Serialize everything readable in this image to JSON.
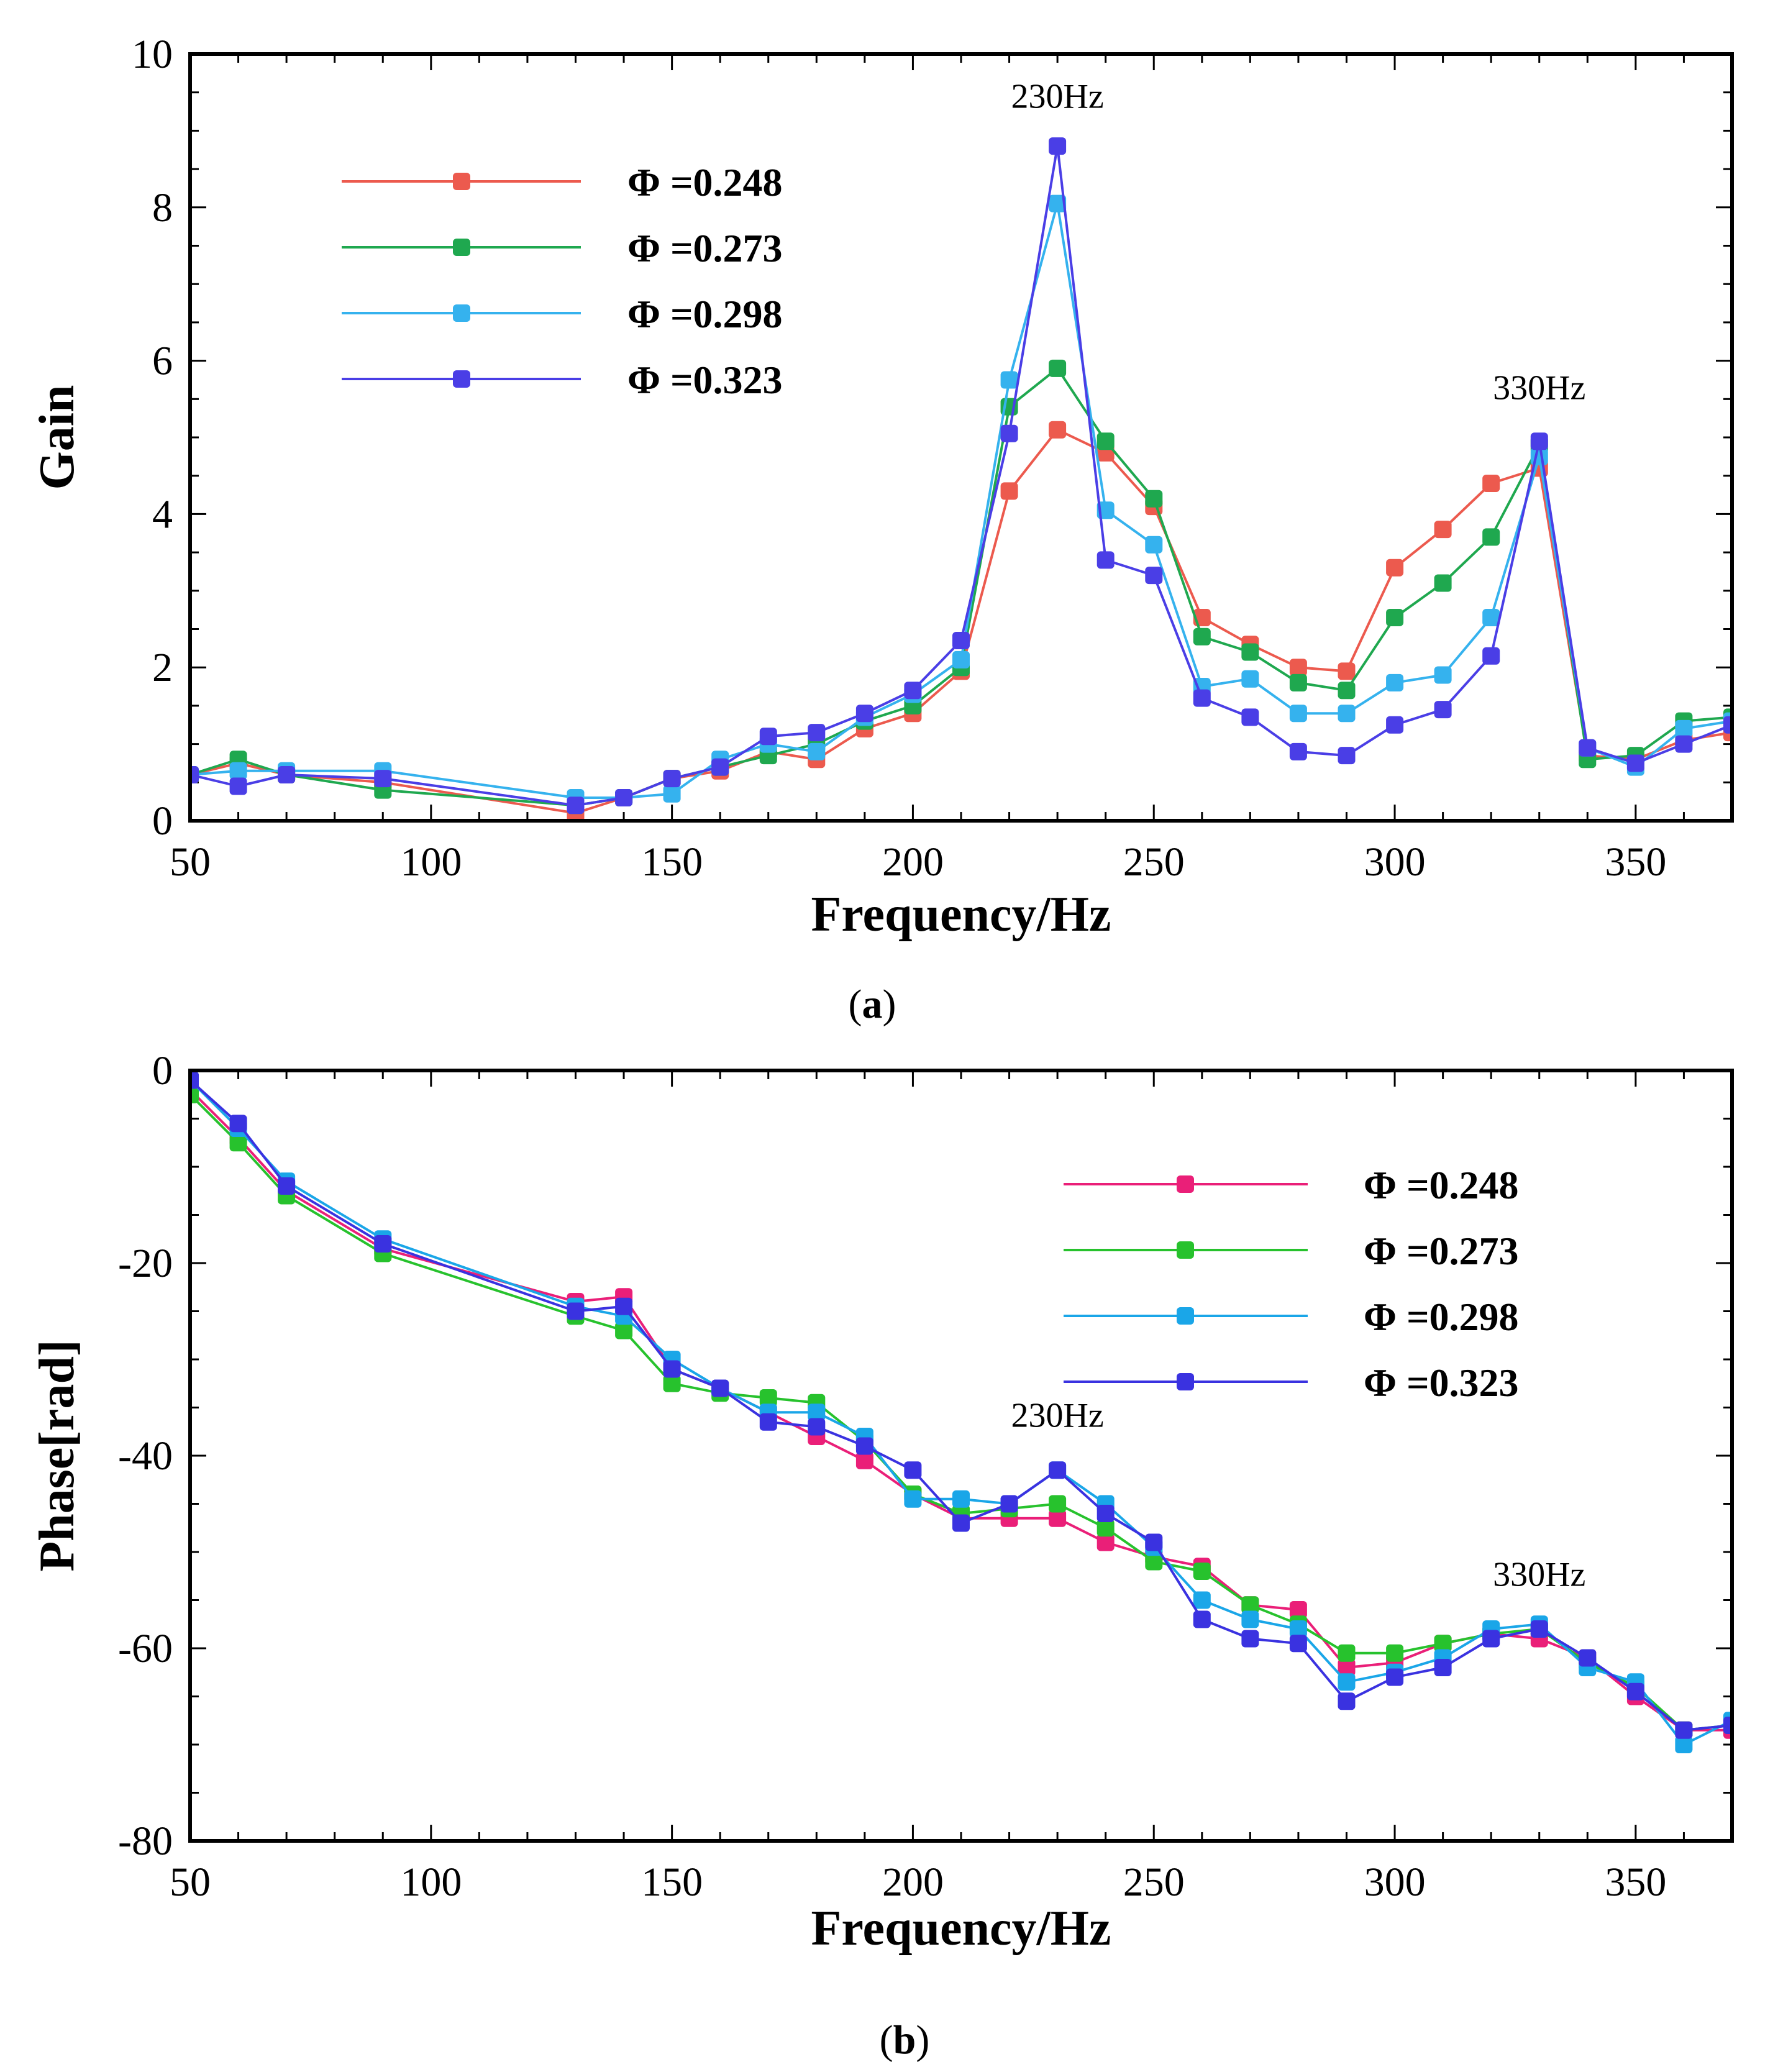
{
  "colors": {
    "a": [
      "#ec5a4e",
      "#1fa84f",
      "#35b2ee",
      "#4a3ee6"
    ],
    "b": [
      "#ea1f78",
      "#27c22d",
      "#1aa6e8",
      "#3a32e0"
    ]
  },
  "chart_data": [
    {
      "type": "line",
      "panel_label": "a",
      "xlabel": "Frequency/Hz",
      "ylabel": "Gain",
      "xlim": [
        50,
        370
      ],
      "ylim": [
        0,
        10
      ],
      "xticks": [
        "50",
        "100",
        "150",
        "200",
        "250",
        "300",
        "350"
      ],
      "yticks": [
        "0",
        "2",
        "4",
        "6",
        "8",
        "10"
      ],
      "legend_position": "top-left",
      "annotations": [
        {
          "text": "230Hz",
          "x": 230,
          "y": 9.3
        },
        {
          "text": "330Hz",
          "x": 330,
          "y": 5.5
        }
      ],
      "x": [
        50,
        60,
        70,
        90,
        130,
        140,
        150,
        160,
        170,
        180,
        190,
        200,
        210,
        220,
        230,
        240,
        250,
        260,
        270,
        280,
        290,
        300,
        310,
        320,
        330,
        340,
        350,
        360,
        370
      ],
      "series": [
        {
          "name": "Φ =0.248",
          "values": [
            0.6,
            0.75,
            0.6,
            0.5,
            0.1,
            0.3,
            0.55,
            0.65,
            0.9,
            0.8,
            1.2,
            1.4,
            1.95,
            4.3,
            5.1,
            4.8,
            4.1,
            2.65,
            2.3,
            2.0,
            1.95,
            3.3,
            3.8,
            4.4,
            4.6,
            0.85,
            0.8,
            1.05,
            1.15
          ]
        },
        {
          "name": "Φ =0.273",
          "values": [
            0.6,
            0.8,
            0.6,
            0.4,
            0.2,
            0.3,
            0.55,
            0.7,
            0.85,
            1.0,
            1.3,
            1.5,
            2.0,
            5.4,
            5.9,
            4.95,
            4.2,
            2.4,
            2.2,
            1.8,
            1.7,
            2.65,
            3.1,
            3.7,
            4.9,
            0.8,
            0.85,
            1.3,
            1.35
          ]
        },
        {
          "name": "Φ =0.298",
          "values": [
            0.6,
            0.65,
            0.65,
            0.65,
            0.3,
            0.3,
            0.35,
            0.8,
            1.0,
            0.9,
            1.35,
            1.65,
            2.1,
            5.75,
            8.05,
            4.05,
            3.6,
            1.75,
            1.85,
            1.4,
            1.4,
            1.8,
            1.9,
            2.65,
            4.75,
            0.95,
            0.7,
            1.2,
            1.3
          ]
        },
        {
          "name": "Φ =0.323",
          "values": [
            0.6,
            0.45,
            0.6,
            0.55,
            0.2,
            0.3,
            0.55,
            0.7,
            1.1,
            1.15,
            1.4,
            1.7,
            2.35,
            5.05,
            8.8,
            3.4,
            3.2,
            1.6,
            1.35,
            0.9,
            0.85,
            1.25,
            1.45,
            2.15,
            4.95,
            0.95,
            0.75,
            1.0,
            1.25
          ]
        }
      ]
    },
    {
      "type": "line",
      "panel_label": "b",
      "xlabel": "Frequency/Hz",
      "ylabel": "Phase[rad]",
      "xlim": [
        50,
        370
      ],
      "ylim": [
        -80,
        0
      ],
      "xticks": [
        "50",
        "100",
        "150",
        "200",
        "250",
        "300",
        "350"
      ],
      "yticks": [
        "0",
        "-20",
        "-40",
        "-60",
        "-80"
      ],
      "legend_position": "top-right",
      "annotations": [
        {
          "text": "230Hz",
          "x": 230,
          "y": -37
        },
        {
          "text": "330Hz",
          "x": 330,
          "y": -53.5
        }
      ],
      "x": [
        50,
        60,
        70,
        90,
        130,
        140,
        150,
        160,
        170,
        180,
        190,
        200,
        210,
        220,
        230,
        240,
        250,
        260,
        270,
        280,
        290,
        300,
        310,
        320,
        330,
        340,
        350,
        360,
        370
      ],
      "series": [
        {
          "name": "Φ =0.248",
          "values": [
            -2,
            -7,
            -12.5,
            -18.5,
            -24,
            -23.5,
            -31,
            -33,
            -35.5,
            -38,
            -40.5,
            -44,
            -46.5,
            -46.5,
            -46.5,
            -49,
            -50.5,
            -51.5,
            -55.5,
            -56,
            -62,
            -61.5,
            -59.5,
            -58.5,
            -59,
            -61,
            -65,
            -68.5,
            -68.5
          ]
        },
        {
          "name": "Φ =0.273",
          "values": [
            -2.5,
            -7.5,
            -13,
            -19,
            -25.5,
            -27,
            -32.5,
            -33.5,
            -34,
            -34.5,
            -38.5,
            -44,
            -46,
            -45.5,
            -45,
            -47.5,
            -51,
            -52,
            -55.5,
            -57.5,
            -60.5,
            -60.5,
            -59.5,
            -58.5,
            -58,
            -61.5,
            -64,
            -68.5,
            -68
          ]
        },
        {
          "name": "Φ =0.298",
          "values": [
            -1,
            -6,
            -11.5,
            -17.5,
            -24.5,
            -25.5,
            -30,
            -33,
            -35.5,
            -35.5,
            -38,
            -44.5,
            -44.5,
            -45,
            -41.5,
            -45,
            -49.5,
            -55,
            -57,
            -58,
            -63.5,
            -62.5,
            -61,
            -58,
            -57.5,
            -62,
            -63.5,
            -70,
            -67.5
          ]
        },
        {
          "name": "Φ =0.323",
          "values": [
            -1,
            -5.5,
            -12,
            -18,
            -25,
            -24.5,
            -31,
            -33,
            -36.5,
            -37,
            -39,
            -41.5,
            -47,
            -45,
            -41.5,
            -46,
            -49,
            -57,
            -59,
            -59.5,
            -65.5,
            -63,
            -62,
            -59,
            -58,
            -61,
            -64.5,
            -68.5,
            -68
          ]
        }
      ]
    }
  ]
}
